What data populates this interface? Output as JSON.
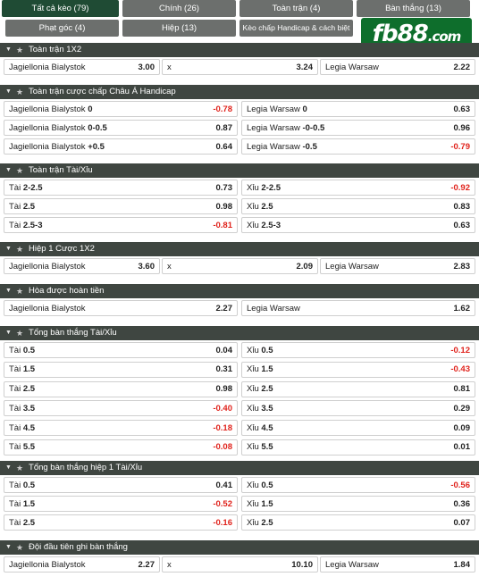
{
  "tabs": [
    {
      "label": "Tất cả kèo (79)",
      "active": true
    },
    {
      "label": "Chính (26)",
      "active": false
    },
    {
      "label": "Toàn trận (4)",
      "active": false
    },
    {
      "label": "Bàn thắng (13)",
      "active": false
    },
    {
      "label": "Phạt góc (4)",
      "active": false
    },
    {
      "label": "Hiệp (13)",
      "active": false
    },
    {
      "label": "Kèo chấp Handicap & cách biệt (3)",
      "active": false
    }
  ],
  "logo": {
    "text": "fb88",
    "suffix": ".com"
  },
  "colors": {
    "header_bg": "#3f4641",
    "active_tab": "#1f4b34",
    "tab_bg": "#6c6f6d",
    "negative": "#e0231c",
    "logo_bg": "#0e6e2c"
  },
  "sections": [
    {
      "title": "Toàn trận 1X2",
      "layout": "three",
      "rows": [
        [
          {
            "team": "Jagiellonia Bialystok",
            "line": "",
            "odd": "3.00"
          },
          {
            "team": "x",
            "line": "",
            "odd": "3.24"
          },
          {
            "team": "Legia Warsaw",
            "line": "",
            "odd": "2.22"
          }
        ]
      ]
    },
    {
      "title": "Toàn trận cược chấp Châu Á Handicap",
      "layout": "two",
      "rows": [
        [
          {
            "team": "Jagiellonia Bialystok",
            "line": "0",
            "odd": "-0.78"
          },
          {
            "team": "Legia Warsaw",
            "line": "0",
            "odd": "0.63"
          }
        ],
        [
          {
            "team": "Jagiellonia Bialystok",
            "line": "0-0.5",
            "odd": "0.87"
          },
          {
            "team": "Legia Warsaw",
            "line": "-0-0.5",
            "odd": "0.96"
          }
        ],
        [
          {
            "team": "Jagiellonia Bialystok",
            "line": "+0.5",
            "odd": "0.64"
          },
          {
            "team": "Legia Warsaw",
            "line": "-0.5",
            "odd": "-0.79"
          }
        ]
      ]
    },
    {
      "title": "Toàn trận Tài/Xỉu",
      "layout": "two",
      "rows": [
        [
          {
            "team": "Tài",
            "line": "2-2.5",
            "odd": "0.73"
          },
          {
            "team": "Xỉu",
            "line": "2-2.5",
            "odd": "-0.92"
          }
        ],
        [
          {
            "team": "Tài",
            "line": "2.5",
            "odd": "0.98"
          },
          {
            "team": "Xỉu",
            "line": "2.5",
            "odd": "0.83"
          }
        ],
        [
          {
            "team": "Tài",
            "line": "2.5-3",
            "odd": "-0.81"
          },
          {
            "team": "Xỉu",
            "line": "2.5-3",
            "odd": "0.63"
          }
        ]
      ]
    },
    {
      "title": "Hiệp 1 Cược 1X2",
      "layout": "three",
      "rows": [
        [
          {
            "team": "Jagiellonia Bialystok",
            "line": "",
            "odd": "3.60"
          },
          {
            "team": "x",
            "line": "",
            "odd": "2.09"
          },
          {
            "team": "Legia Warsaw",
            "line": "",
            "odd": "2.83"
          }
        ]
      ]
    },
    {
      "title": "Hòa được hoàn tiền",
      "layout": "two",
      "rows": [
        [
          {
            "team": "Jagiellonia Bialystok",
            "line": "",
            "odd": "2.27"
          },
          {
            "team": "Legia Warsaw",
            "line": "",
            "odd": "1.62"
          }
        ]
      ]
    },
    {
      "title": "Tổng bàn thắng Tài/Xỉu",
      "layout": "two",
      "rows": [
        [
          {
            "team": "Tài",
            "line": "0.5",
            "odd": "0.04"
          },
          {
            "team": "Xỉu",
            "line": "0.5",
            "odd": "-0.12"
          }
        ],
        [
          {
            "team": "Tài",
            "line": "1.5",
            "odd": "0.31"
          },
          {
            "team": "Xỉu",
            "line": "1.5",
            "odd": "-0.43"
          }
        ],
        [
          {
            "team": "Tài",
            "line": "2.5",
            "odd": "0.98"
          },
          {
            "team": "Xỉu",
            "line": "2.5",
            "odd": "0.81"
          }
        ],
        [
          {
            "team": "Tài",
            "line": "3.5",
            "odd": "-0.40"
          },
          {
            "team": "Xỉu",
            "line": "3.5",
            "odd": "0.29"
          }
        ],
        [
          {
            "team": "Tài",
            "line": "4.5",
            "odd": "-0.18"
          },
          {
            "team": "Xỉu",
            "line": "4.5",
            "odd": "0.09"
          }
        ],
        [
          {
            "team": "Tài",
            "line": "5.5",
            "odd": "-0.08"
          },
          {
            "team": "Xỉu",
            "line": "5.5",
            "odd": "0.01"
          }
        ]
      ]
    },
    {
      "title": "Tổng bàn thắng hiệp 1 Tài/Xỉu",
      "layout": "two",
      "rows": [
        [
          {
            "team": "Tài",
            "line": "0.5",
            "odd": "0.41"
          },
          {
            "team": "Xỉu",
            "line": "0.5",
            "odd": "-0.56"
          }
        ],
        [
          {
            "team": "Tài",
            "line": "1.5",
            "odd": "-0.52"
          },
          {
            "team": "Xỉu",
            "line": "1.5",
            "odd": "0.36"
          }
        ],
        [
          {
            "team": "Tài",
            "line": "2.5",
            "odd": "-0.16"
          },
          {
            "team": "Xỉu",
            "line": "2.5",
            "odd": "0.07"
          }
        ]
      ]
    },
    {
      "title": "Đội đầu tiên ghi bàn thắng",
      "layout": "three",
      "rows": [
        [
          {
            "team": "Jagiellonia Bialystok",
            "line": "",
            "odd": "2.27"
          },
          {
            "team": "x",
            "line": "",
            "odd": "10.10"
          },
          {
            "team": "Legia Warsaw",
            "line": "",
            "odd": "1.84"
          }
        ]
      ]
    }
  ]
}
